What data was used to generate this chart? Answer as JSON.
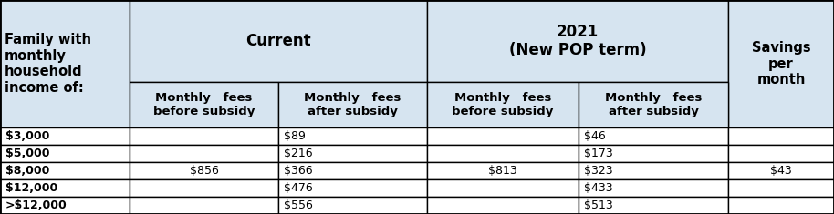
{
  "header_bg": "#d6e4f0",
  "white_bg": "#ffffff",
  "border_color": "#000000",
  "col0_header": "Family with\nmonthly\nhousehold\nincome of:",
  "current_label": "Current",
  "year_label": "2021\n(New POP term)",
  "savings_label": "Savings\nper\nmonth",
  "sub_headers": [
    "Monthly   fees\nbefore subsidy",
    "Monthly   fees\nafter subsidy",
    "Monthly   fees\nbefore subsidy",
    "Monthly   fees\nafter subsidy"
  ],
  "row_labels": [
    "$3,000",
    "$5,000",
    "$8,000",
    "$12,000",
    ">$12,000"
  ],
  "col1_data": "$856",
  "col2_data": [
    "$89",
    "$216",
    "$366",
    "$476",
    "$556"
  ],
  "col3_data": "$813",
  "col4_data": [
    "$46",
    "$173",
    "$323",
    "$433",
    "$513"
  ],
  "col5_data": "$43",
  "font_size": 9.0,
  "header_font_size": 10.5,
  "sub_font_size": 9.5
}
